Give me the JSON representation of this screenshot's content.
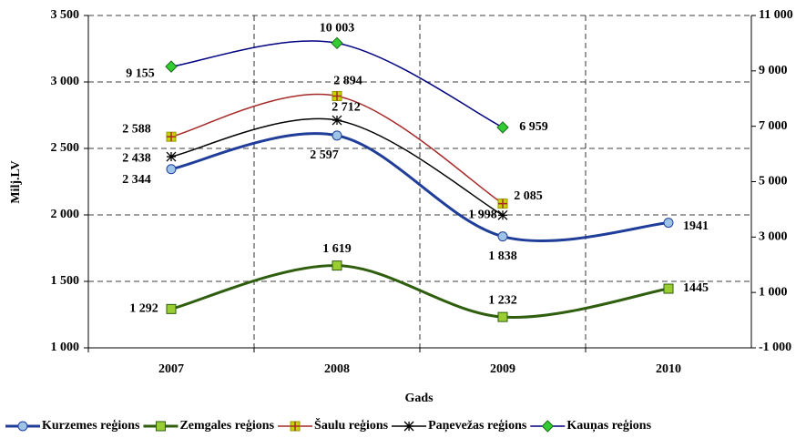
{
  "chart_data": {
    "type": "line",
    "xlabel": "Gads",
    "ylabel": "Milj.LV",
    "categories": [
      "2007",
      "2008",
      "2009",
      "2010"
    ],
    "ylim": [
      1000,
      3500
    ],
    "yticks": [
      {
        "value": 1000,
        "label": "1 000"
      },
      {
        "value": 1500,
        "label": "1 500"
      },
      {
        "value": 2000,
        "label": "2 000"
      },
      {
        "value": 2500,
        "label": "2 500"
      },
      {
        "value": 3000,
        "label": "3 000"
      },
      {
        "value": 3500,
        "label": "3 500"
      }
    ],
    "y2lim": [
      -1000,
      11000
    ],
    "y2ticks": [
      {
        "value": -1000,
        "label": "-1 000"
      },
      {
        "value": 1000,
        "label": "1 000"
      },
      {
        "value": 3000,
        "label": "3 000"
      },
      {
        "value": 5000,
        "label": "5 000"
      },
      {
        "value": 7000,
        "label": "7 000"
      },
      {
        "value": 9000,
        "label": "9 000"
      },
      {
        "value": 11000,
        "label": "11 000"
      }
    ],
    "grid": true,
    "legend": "bottom",
    "series": [
      {
        "name": "Kurzemes reģions",
        "color": "#1f3d99",
        "marker": "circle",
        "marker_color": "#9dc3e6",
        "values": [
          2344,
          2597,
          1838,
          1941
        ],
        "value_labels": [
          "2 344",
          "2 597",
          "1 838",
          "1941"
        ]
      },
      {
        "name": "Zemgales reģions",
        "color": "#2e5e0e",
        "marker": "square",
        "marker_color": "#9acd32",
        "values": [
          1292,
          1619,
          1232,
          1445
        ],
        "value_labels": [
          "1 292",
          "1 619",
          "1 232",
          "1445"
        ]
      },
      {
        "name": "Šaulu reģions",
        "color": "#a52a2a",
        "marker": "plus",
        "marker_color": "#c8d400",
        "values": [
          2588,
          2894,
          2085,
          null
        ],
        "value_labels": [
          "2 588",
          "2 894",
          "2 085",
          null
        ]
      },
      {
        "name": "Paņevežas reģions",
        "color": "#000000",
        "marker": "star",
        "marker_color": "#000000",
        "values": [
          2438,
          2712,
          1998,
          null
        ],
        "value_labels": [
          "2 438",
          "2 712",
          "1 998",
          null
        ]
      },
      {
        "name": "Kauņas reģions",
        "color": "#000080",
        "marker": "diamond",
        "marker_color": "#33cc33",
        "axis": "y2",
        "values": [
          9155,
          10003,
          6959,
          null
        ],
        "value_labels": [
          "9 155",
          "10 003",
          "6 959",
          null
        ]
      }
    ]
  }
}
